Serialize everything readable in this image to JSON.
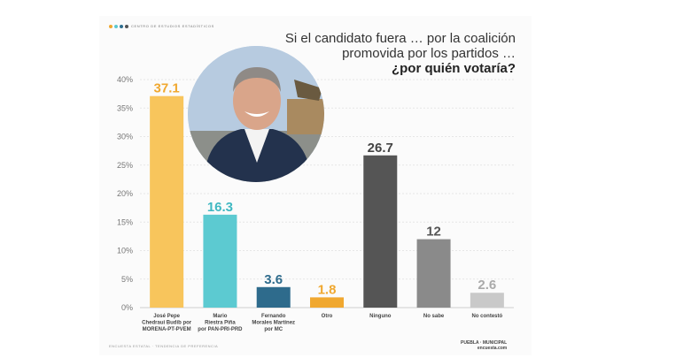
{
  "header": {
    "brand": "CENTRO DE ESTUDIOS ESTADÍSTICOS",
    "brand_colors": [
      "#f0a830",
      "#5bc8d0",
      "#2f6f8f",
      "#555555"
    ]
  },
  "question": {
    "line1": "Si el candidato fuera … por la coalición",
    "line2": "promovida por los partidos …",
    "line3": "¿por quién votaría?"
  },
  "photo": {
    "icon": "candidate-portrait"
  },
  "footer": {
    "left": "ENCUESTA ESTATAL  ·  TENDENCIA DE PREFERENCIA",
    "right_line1": "PUEBLA · MUNICIPAL",
    "right_line2": "encuesta.com"
  },
  "chart_data": {
    "type": "bar",
    "categories": [
      [
        "José Pepe",
        "Chedraui Budib por",
        "MORENA-PT-PVEM"
      ],
      [
        "Mario",
        "Riestra Piña",
        "por PAN-PRI-PRD"
      ],
      [
        "Fernando",
        "Morales Martínez",
        "por MC"
      ],
      [
        "Otro"
      ],
      [
        "Ninguno"
      ],
      [
        "No sabe"
      ],
      [
        "No contestó"
      ]
    ],
    "values": [
      37.1,
      16.3,
      3.6,
      1.8,
      26.7,
      12,
      2.6
    ],
    "value_labels": [
      "37.1",
      "16.3",
      "3.6",
      "1.8",
      "26.7",
      "12",
      "2.6"
    ],
    "bar_colors": [
      "#f8c55c",
      "#5ccad1",
      "#2e6b8c",
      "#f0a830",
      "#555555",
      "#8a8a8a",
      "#c9c9c9"
    ],
    "label_colors": [
      "#f0a830",
      "#3fb8c2",
      "#2e6b8c",
      "#f0a830",
      "#444444",
      "#555555",
      "#aaaaaa"
    ],
    "yticks": [
      "0%",
      "5%",
      "10%",
      "15%",
      "20%",
      "25%",
      "30%",
      "35%",
      "40%"
    ],
    "ylim": [
      0,
      40
    ],
    "grid": true
  }
}
